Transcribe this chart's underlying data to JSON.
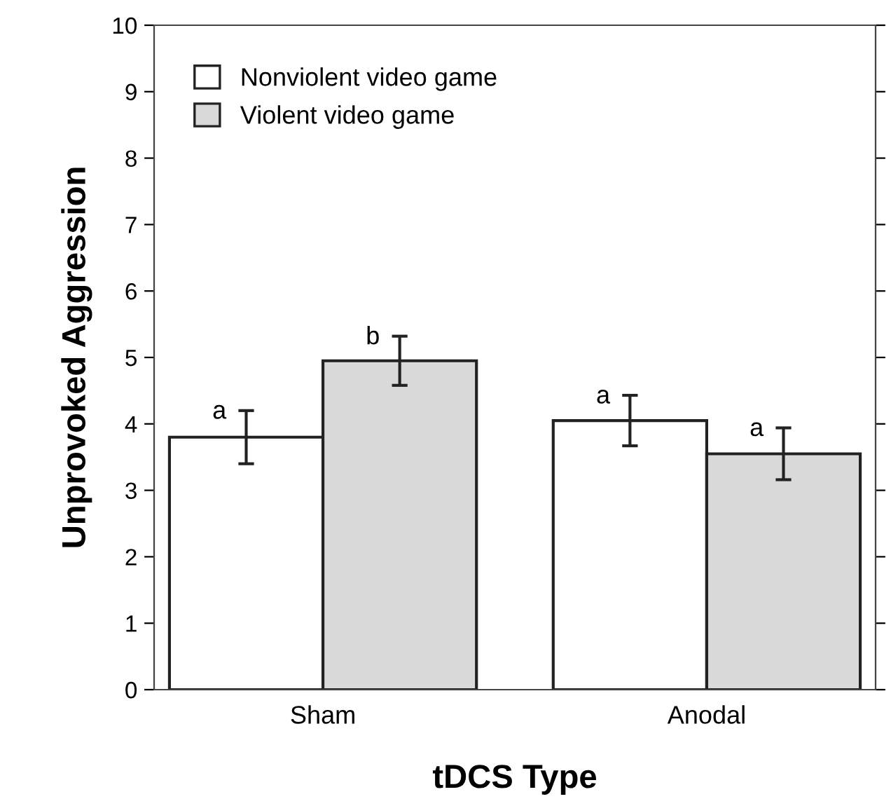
{
  "chart_data": {
    "type": "bar",
    "xlabel": "tDCS Type",
    "ylabel": "Unprovoked Aggression",
    "categories": [
      "Sham",
      "Anodal"
    ],
    "series": [
      {
        "name": "Nonviolent video game",
        "color": "#ffffff",
        "values": [
          3.8,
          4.05
        ],
        "errors": [
          0.4,
          0.38
        ]
      },
      {
        "name": "Violent video game",
        "color": "#d9d9d9",
        "values": [
          4.95,
          3.55
        ],
        "errors": [
          0.37,
          0.39
        ]
      }
    ],
    "ylim": [
      0,
      10
    ],
    "yticks": [
      0,
      1,
      2,
      3,
      4,
      5,
      6,
      7,
      8,
      9,
      10
    ],
    "grid": false,
    "legend": "top left",
    "annotations": [
      "a",
      "b",
      "a",
      "a"
    ]
  }
}
